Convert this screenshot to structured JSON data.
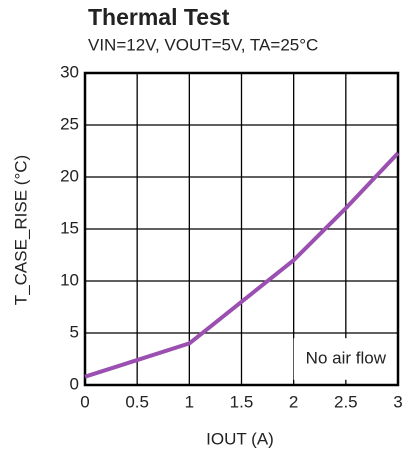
{
  "chart_data": {
    "type": "line",
    "title": "Thermal Test",
    "subtitle": "VIN=12V, VOUT=5V, TA=25°C",
    "x_label": "IOUT (A)",
    "y_label": "T_CASE_RISE (°C)",
    "annotation": "No air flow",
    "x": [
      0,
      0.5,
      1,
      1.5,
      2,
      2.5,
      3
    ],
    "series": [
      {
        "name": "No air flow",
        "color": "#9b4fb0",
        "values": [
          0.8,
          2.4,
          4,
          8,
          12,
          17,
          22.3
        ]
      }
    ],
    "xlim": [
      0,
      3
    ],
    "xticks": [
      0,
      0.5,
      1,
      1.5,
      2,
      2.5,
      3
    ],
    "ylim": [
      0,
      30
    ],
    "yticks": [
      0,
      5,
      10,
      15,
      20,
      25,
      30
    ],
    "grid": true
  }
}
